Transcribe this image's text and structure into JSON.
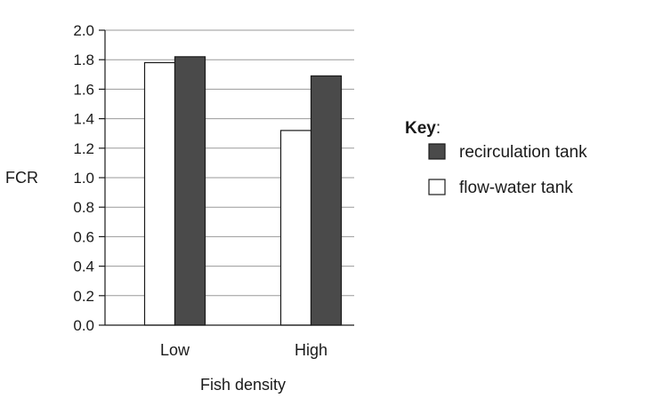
{
  "chart_data": {
    "type": "bar",
    "categories": [
      "Low",
      "High"
    ],
    "series": [
      {
        "name": "flow-water tank",
        "values": [
          1.78,
          1.32
        ],
        "color": "#ffffff"
      },
      {
        "name": "recirculation tank",
        "values": [
          1.82,
          1.69
        ],
        "color": "#4a4a4a"
      }
    ],
    "xlabel": "Fish density",
    "ylabel": "FCR",
    "ylim": [
      0,
      2.0
    ],
    "yticks": [
      "0.0",
      "0.2",
      "0.4",
      "0.6",
      "0.8",
      "1.0",
      "1.2",
      "1.4",
      "1.6",
      "1.8",
      "2.0"
    ],
    "grid": true,
    "legend": {
      "title": "Key",
      "title_suffix": ":",
      "placement": "right",
      "order": [
        "recirculation tank",
        "flow-water tank"
      ]
    }
  }
}
